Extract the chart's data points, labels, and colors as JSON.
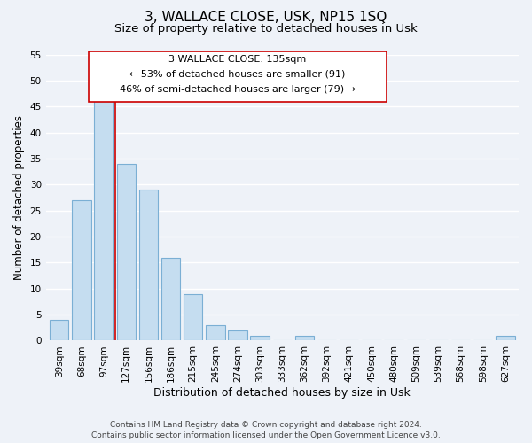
{
  "title": "3, WALLACE CLOSE, USK, NP15 1SQ",
  "subtitle": "Size of property relative to detached houses in Usk",
  "xlabel": "Distribution of detached houses by size in Usk",
  "ylabel": "Number of detached properties",
  "bar_color": "#c5ddf0",
  "bar_edge_color": "#7bafd4",
  "categories": [
    "39sqm",
    "68sqm",
    "97sqm",
    "127sqm",
    "156sqm",
    "186sqm",
    "215sqm",
    "245sqm",
    "274sqm",
    "303sqm",
    "333sqm",
    "362sqm",
    "392sqm",
    "421sqm",
    "450sqm",
    "480sqm",
    "509sqm",
    "539sqm",
    "568sqm",
    "598sqm",
    "627sqm"
  ],
  "values": [
    4,
    27,
    46,
    34,
    29,
    16,
    9,
    3,
    2,
    1,
    0,
    1,
    0,
    0,
    0,
    0,
    0,
    0,
    0,
    0,
    1
  ],
  "ylim": [
    0,
    55
  ],
  "yticks": [
    0,
    5,
    10,
    15,
    20,
    25,
    30,
    35,
    40,
    45,
    50,
    55
  ],
  "vline_color": "#cc0000",
  "annotation_title": "3 WALLACE CLOSE: 135sqm",
  "annotation_line1": "← 53% of detached houses are smaller (91)",
  "annotation_line2": "46% of semi-detached houses are larger (79) →",
  "footer_line1": "Contains HM Land Registry data © Crown copyright and database right 2024.",
  "footer_line2": "Contains public sector information licensed under the Open Government Licence v3.0.",
  "bg_color": "#eef2f8",
  "plot_bg": "#eef2f8",
  "grid_color": "#ffffff",
  "title_fontsize": 11,
  "subtitle_fontsize": 9.5,
  "xlabel_fontsize": 9,
  "ylabel_fontsize": 8.5,
  "tick_fontsize": 7.5,
  "annot_fontsize": 8,
  "footer_fontsize": 6.5
}
